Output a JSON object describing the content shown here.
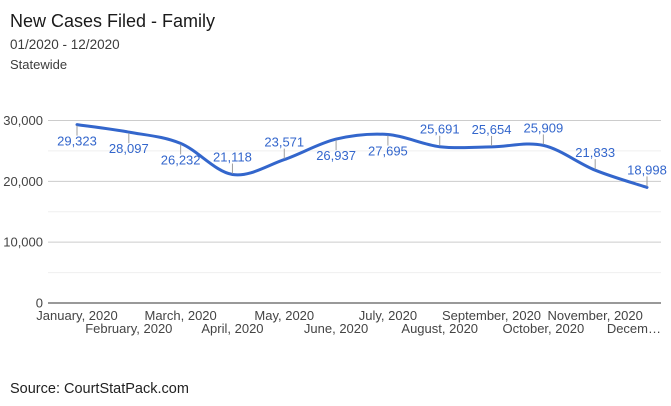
{
  "header": {
    "title": "New Cases Filed - Family",
    "subtitle": "01/2020 - 12/2020",
    "scope": "Statewide"
  },
  "footer": {
    "source": "Source: CourtStatPack.com"
  },
  "chart_data": {
    "type": "line",
    "title": "New Cases Filed - Family",
    "subtitle": "01/2020 - 12/2020",
    "region": "Statewide",
    "smooth": true,
    "legend": "none",
    "grid": true,
    "categories": [
      "January, 2020",
      "February, 2020",
      "March, 2020",
      "April, 2020",
      "May, 2020",
      "June, 2020",
      "July, 2020",
      "August, 2020",
      "September, 2020",
      "October, 2020",
      "November, 2020",
      "December, 2020"
    ],
    "x_tick_display": [
      "January, 2020",
      "February, 2020",
      "March, 2020",
      "April, 2020",
      "May, 2020",
      "June, 2020",
      "July, 2020",
      "August, 2020",
      "September, 2020",
      "October, 2020",
      "November, 2020",
      "Decem…"
    ],
    "values": [
      29323,
      28097,
      26232,
      21118,
      23571,
      26937,
      27695,
      25691,
      25654,
      25909,
      21833,
      18998
    ],
    "point_labels": [
      "29,323",
      "28,097",
      "26,232",
      "21,118",
      "23,571",
      "26,937",
      "27,695",
      "25,691",
      "25,654",
      "25,909",
      "21,833",
      "18,998"
    ],
    "label_placement": [
      "below",
      "below",
      "below",
      "above",
      "above",
      "below",
      "below",
      "above",
      "above",
      "above",
      "above",
      "above"
    ],
    "xlabel": "",
    "ylabel": "",
    "ylim": [
      0,
      30000
    ],
    "y_ticks": [
      0,
      10000,
      20000,
      30000
    ],
    "y_tick_labels": [
      "0",
      "10,000",
      "20,000",
      "30,000"
    ],
    "minor_grid_step": 5000,
    "colors": {
      "line": "#3366cc",
      "point_label": "#3366cc",
      "stem": "#9e9e9e",
      "major_grid": "#cccccc",
      "minor_grid": "#efefef",
      "baseline": "#333333",
      "axis_text": "#444444"
    }
  }
}
